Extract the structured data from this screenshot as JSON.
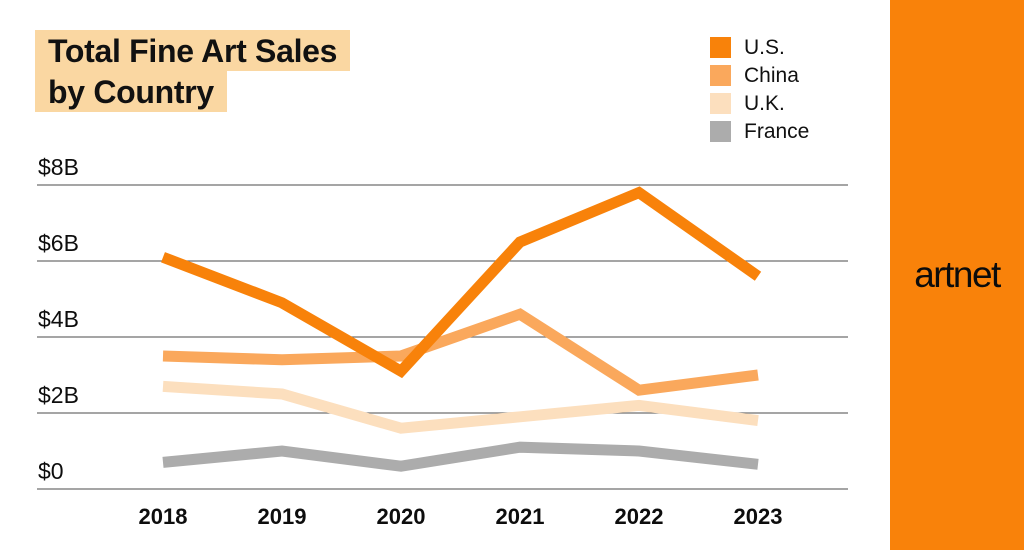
{
  "title": {
    "line1": "Total Fine Art Sales",
    "line2": "by Country",
    "highlight_color": "#FAD7A2"
  },
  "brand": {
    "wordmark": "artnet",
    "sidebar_color": "#F9820A",
    "text_color": "#0c0c0c"
  },
  "axes": {
    "gridline_color": "#6F6F6F",
    "x_labels": [
      "2018",
      "2019",
      "2020",
      "2021",
      "2022",
      "2023"
    ],
    "y_tick_labels": [
      "$0",
      "$2B",
      "$4B",
      "$6B",
      "$8B"
    ]
  },
  "chart_data": {
    "type": "line",
    "title": "Total Fine Art Sales by Country",
    "x": [
      "2018",
      "2019",
      "2020",
      "2021",
      "2022",
      "2023"
    ],
    "unit": "USD billions",
    "ylim": [
      0,
      8
    ],
    "y_ticks": [
      {
        "value": 0,
        "label": "$0"
      },
      {
        "value": 2,
        "label": "$2B"
      },
      {
        "value": 4,
        "label": "$4B"
      },
      {
        "value": 6,
        "label": "$6B"
      },
      {
        "value": 8,
        "label": "$8B"
      }
    ],
    "grid": "horizontal",
    "legend_position": "top-right",
    "series": [
      {
        "name": "U.S.",
        "color": "#F8820A",
        "values": [
          6.1,
          4.9,
          3.1,
          6.5,
          7.8,
          5.6
        ]
      },
      {
        "name": "China",
        "color": "#FAA85C",
        "values": [
          3.5,
          3.4,
          3.5,
          4.6,
          2.6,
          3.0
        ]
      },
      {
        "name": "U.K.",
        "color": "#FCDFBE",
        "values": [
          2.7,
          2.5,
          1.6,
          1.9,
          2.2,
          1.8
        ]
      },
      {
        "name": "France",
        "color": "#ACACAC",
        "values": [
          0.7,
          1.0,
          0.6,
          1.1,
          1.0,
          0.65
        ]
      }
    ]
  }
}
